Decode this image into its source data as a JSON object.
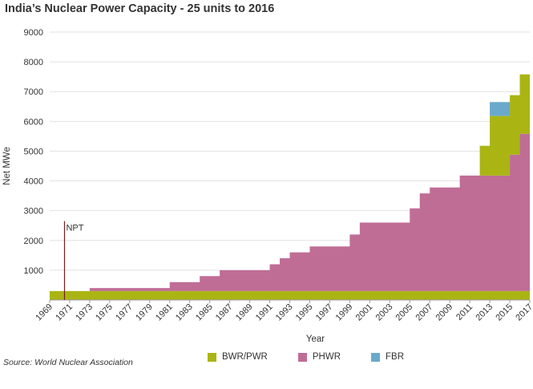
{
  "chart_data": {
    "type": "area",
    "title": "India’s Nuclear Power Capacity - 25 units to 2016",
    "xlabel": "Year",
    "ylabel": "Net MWe",
    "ylim": [
      0,
      9000
    ],
    "xlim": [
      1969,
      2017
    ],
    "yticks": [
      1000,
      2000,
      3000,
      4000,
      5000,
      6000,
      7000,
      8000,
      9000
    ],
    "xticks": [
      "1969",
      "1971",
      "1973",
      "1975",
      "1977",
      "1979",
      "1981",
      "1983",
      "1985",
      "1987",
      "1989",
      "1991",
      "1993",
      "1995",
      "1997",
      "1999",
      "2001",
      "2003",
      "2005",
      "2007",
      "2009",
      "2011",
      "2013",
      "2015",
      "2017"
    ],
    "grid": "horizontal",
    "legend_position": "bottom",
    "series": [
      {
        "name": "BWR/PWR",
        "color": "#aab514",
        "steps": [
          [
            1969,
            300
          ],
          [
            2011,
            300
          ],
          [
            2012,
            1300
          ],
          [
            2013,
            2300
          ],
          [
            2017,
            2300
          ]
        ]
      },
      {
        "name": "PHWR",
        "color": "#c06d96",
        "steps": [
          [
            1969,
            0
          ],
          [
            1973,
            100
          ],
          [
            1981,
            300
          ],
          [
            1984,
            500
          ],
          [
            1986,
            700
          ],
          [
            1991,
            900
          ],
          [
            1992,
            1100
          ],
          [
            1993,
            1300
          ],
          [
            1995,
            1500
          ],
          [
            1999,
            1900
          ],
          [
            2000,
            2300
          ],
          [
            2005,
            2780
          ],
          [
            2006,
            3280
          ],
          [
            2007,
            3480
          ],
          [
            2010,
            3880
          ],
          [
            2015,
            4580
          ],
          [
            2016,
            5280
          ],
          [
            2017,
            5280
          ]
        ]
      },
      {
        "name": "FBR",
        "color": "#6aa9cc",
        "steps": [
          [
            1969,
            0
          ],
          [
            2013,
            0
          ],
          [
            2013,
            470
          ],
          [
            2015,
            470
          ],
          [
            2015,
            0
          ],
          [
            2017,
            0
          ]
        ]
      }
    ],
    "annotations": [
      {
        "text": "NPT",
        "x": 1970
      }
    ]
  },
  "source": "Source: World Nuclear Association"
}
